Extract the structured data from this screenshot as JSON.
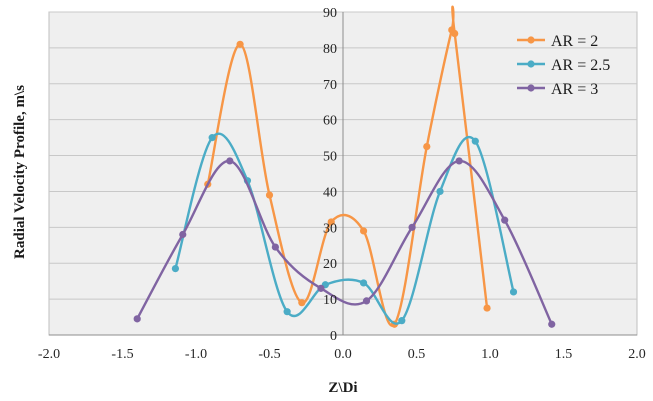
{
  "chart_data": {
    "type": "scatter",
    "title": "",
    "xlabel": "Z\\Di",
    "ylabel": "Radial Velocity Profile, m\\s",
    "xlim": [
      -2.0,
      2.0
    ],
    "ylim": [
      0,
      90
    ],
    "x_ticks": [
      "-2.0",
      "-1.5",
      "-1.0",
      "-0.5",
      "0.0",
      "0.5",
      "1.0",
      "1.5",
      "2.0"
    ],
    "y_ticks": [
      "0",
      "10",
      "20",
      "30",
      "40",
      "50",
      "60",
      "70",
      "80",
      "90"
    ],
    "grid": true,
    "smoothed_lines": true,
    "legend_position": "top-right",
    "series": [
      {
        "name": "AR = 2",
        "color": "#F79646",
        "x": [
          -0.92,
          -0.7,
          -0.5,
          -0.28,
          -0.08,
          0.14,
          0.35,
          0.57,
          0.74,
          0.76,
          0.98
        ],
        "y": [
          42,
          81,
          39,
          9,
          31.5,
          29,
          3,
          52.5,
          85,
          84,
          7.5
        ]
      },
      {
        "name": "AR = 2.5",
        "color": "#4BACC6",
        "x": [
          -1.14,
          -0.89,
          -0.65,
          -0.38,
          -0.12,
          0.14,
          0.4,
          0.66,
          0.9,
          1.16
        ],
        "y": [
          18.5,
          55,
          43,
          6.5,
          14,
          14.5,
          4,
          40,
          54,
          12
        ]
      },
      {
        "name": "AR = 3",
        "color": "#8064A2",
        "x": [
          -1.4,
          -1.09,
          -0.77,
          -0.46,
          -0.15,
          0.16,
          0.47,
          0.79,
          1.1,
          1.42
        ],
        "y": [
          4.5,
          28,
          48.5,
          24.5,
          13,
          9.5,
          30,
          48.5,
          32,
          3
        ]
      }
    ]
  }
}
